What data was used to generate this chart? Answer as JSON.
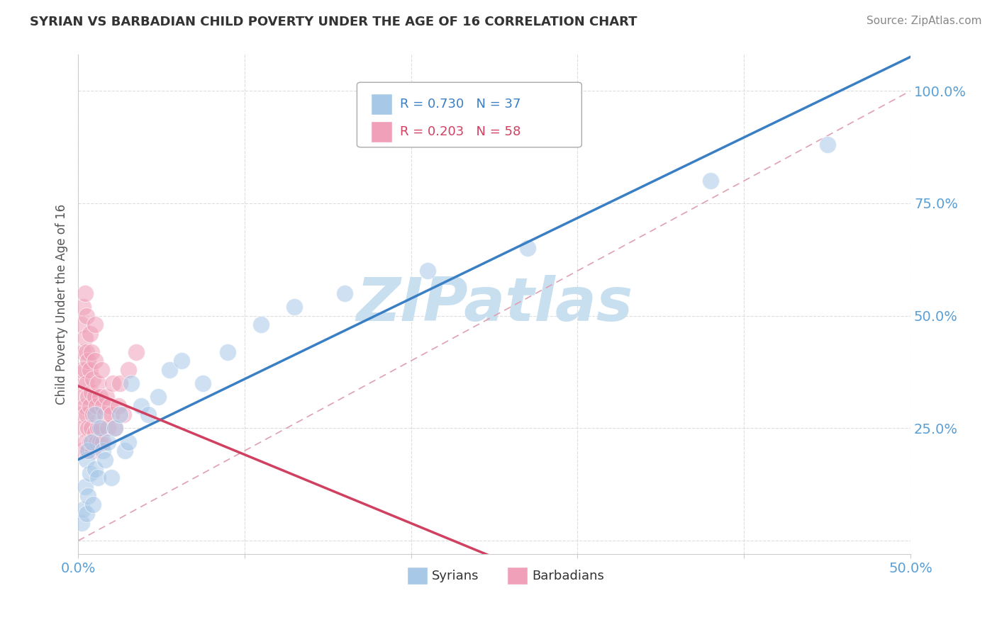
{
  "title": "SYRIAN VS BARBADIAN CHILD POVERTY UNDER THE AGE OF 16 CORRELATION CHART",
  "source": "Source: ZipAtlas.com",
  "ylabel": "Child Poverty Under the Age of 16",
  "xlim": [
    0.0,
    0.5
  ],
  "ylim": [
    -0.03,
    1.08
  ],
  "xtick_positions": [
    0.0,
    0.1,
    0.2,
    0.3,
    0.4,
    0.5
  ],
  "xtick_labels": [
    "0.0%",
    "",
    "",
    "",
    "",
    "50.0%"
  ],
  "ytick_positions": [
    0.0,
    0.25,
    0.5,
    0.75,
    1.0
  ],
  "ytick_labels": [
    "",
    "25.0%",
    "50.0%",
    "75.0%",
    "100.0%"
  ],
  "syrian_color": "#a8c8e8",
  "barbadian_color": "#f0a0b8",
  "syrian_R": 0.73,
  "syrian_N": 37,
  "barbadian_R": 0.203,
  "barbadian_N": 58,
  "watermark": "ZIPatlas",
  "watermark_color": "#c8dff0",
  "background_color": "#ffffff",
  "grid_color": "#dddddd",
  "syrian_line_color": "#3a7fc4",
  "barbadian_line_color": "#d04060",
  "ref_line_color": "#e0a0b0",
  "tick_color": "#5a9fd4",
  "title_color": "#333333",
  "source_color": "#888888",
  "ylabel_color": "#555555",
  "syrian_x": [
    0.002,
    0.003,
    0.004,
    0.005,
    0.005,
    0.006,
    0.006,
    0.007,
    0.008,
    0.009,
    0.01,
    0.01,
    0.012,
    0.013,
    0.015,
    0.016,
    0.018,
    0.02,
    0.022,
    0.025,
    0.028,
    0.03,
    0.032,
    0.038,
    0.042,
    0.048,
    0.055,
    0.062,
    0.075,
    0.09,
    0.11,
    0.13,
    0.16,
    0.21,
    0.27,
    0.38,
    0.45
  ],
  "syrian_y": [
    0.04,
    0.07,
    0.12,
    0.06,
    0.18,
    0.1,
    0.2,
    0.15,
    0.22,
    0.08,
    0.16,
    0.28,
    0.14,
    0.25,
    0.2,
    0.18,
    0.22,
    0.14,
    0.25,
    0.28,
    0.2,
    0.22,
    0.35,
    0.3,
    0.28,
    0.32,
    0.38,
    0.4,
    0.35,
    0.42,
    0.48,
    0.52,
    0.55,
    0.6,
    0.65,
    0.8,
    0.88
  ],
  "barbadian_x": [
    0.001,
    0.001,
    0.002,
    0.002,
    0.002,
    0.003,
    0.003,
    0.003,
    0.003,
    0.004,
    0.004,
    0.004,
    0.004,
    0.004,
    0.005,
    0.005,
    0.005,
    0.005,
    0.005,
    0.006,
    0.006,
    0.006,
    0.007,
    0.007,
    0.007,
    0.007,
    0.008,
    0.008,
    0.008,
    0.009,
    0.009,
    0.009,
    0.01,
    0.01,
    0.01,
    0.01,
    0.011,
    0.011,
    0.012,
    0.012,
    0.013,
    0.013,
    0.014,
    0.014,
    0.015,
    0.015,
    0.016,
    0.017,
    0.018,
    0.019,
    0.02,
    0.021,
    0.022,
    0.024,
    0.025,
    0.027,
    0.03,
    0.035
  ],
  "barbadian_y": [
    0.28,
    0.35,
    0.2,
    0.38,
    0.48,
    0.25,
    0.32,
    0.42,
    0.52,
    0.22,
    0.3,
    0.38,
    0.45,
    0.55,
    0.2,
    0.28,
    0.35,
    0.42,
    0.5,
    0.25,
    0.32,
    0.4,
    0.22,
    0.3,
    0.38,
    0.46,
    0.25,
    0.33,
    0.42,
    0.2,
    0.28,
    0.36,
    0.24,
    0.32,
    0.4,
    0.48,
    0.22,
    0.3,
    0.25,
    0.35,
    0.22,
    0.32,
    0.25,
    0.38,
    0.22,
    0.3,
    0.28,
    0.32,
    0.25,
    0.3,
    0.28,
    0.35,
    0.25,
    0.3,
    0.35,
    0.28,
    0.38,
    0.42
  ],
  "legend_box_color": "#aaaaaa",
  "legend_bg": "white"
}
